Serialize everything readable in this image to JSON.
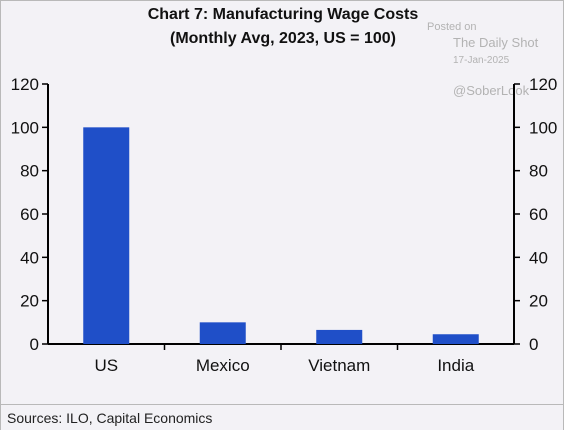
{
  "header": {
    "title": "Chart 7: Manufacturing Wage Costs",
    "subtitle": "(Monthly Avg, 2023, US = 100)"
  },
  "watermark": {
    "posted": "Posted on",
    "site": "The Daily Shot",
    "date": "17-Jan-2025",
    "handle": "@SoberLook"
  },
  "footer": {
    "source": "Sources: ILO, Capital Economics"
  },
  "chart_data": {
    "type": "bar",
    "title": "Chart 7: Manufacturing Wage Costs",
    "subtitle": "(Monthly Avg, 2023, US = 100)",
    "categories": [
      "US",
      "Mexico",
      "Vietnam",
      "India"
    ],
    "values": [
      100,
      10,
      6.5,
      4.5
    ],
    "ylim": [
      0,
      120
    ],
    "yticks": [
      "0",
      "20",
      "40",
      "60",
      "80",
      "100",
      "120"
    ],
    "grid": false,
    "legend": "none",
    "bar_color": "#1f4fc8"
  }
}
